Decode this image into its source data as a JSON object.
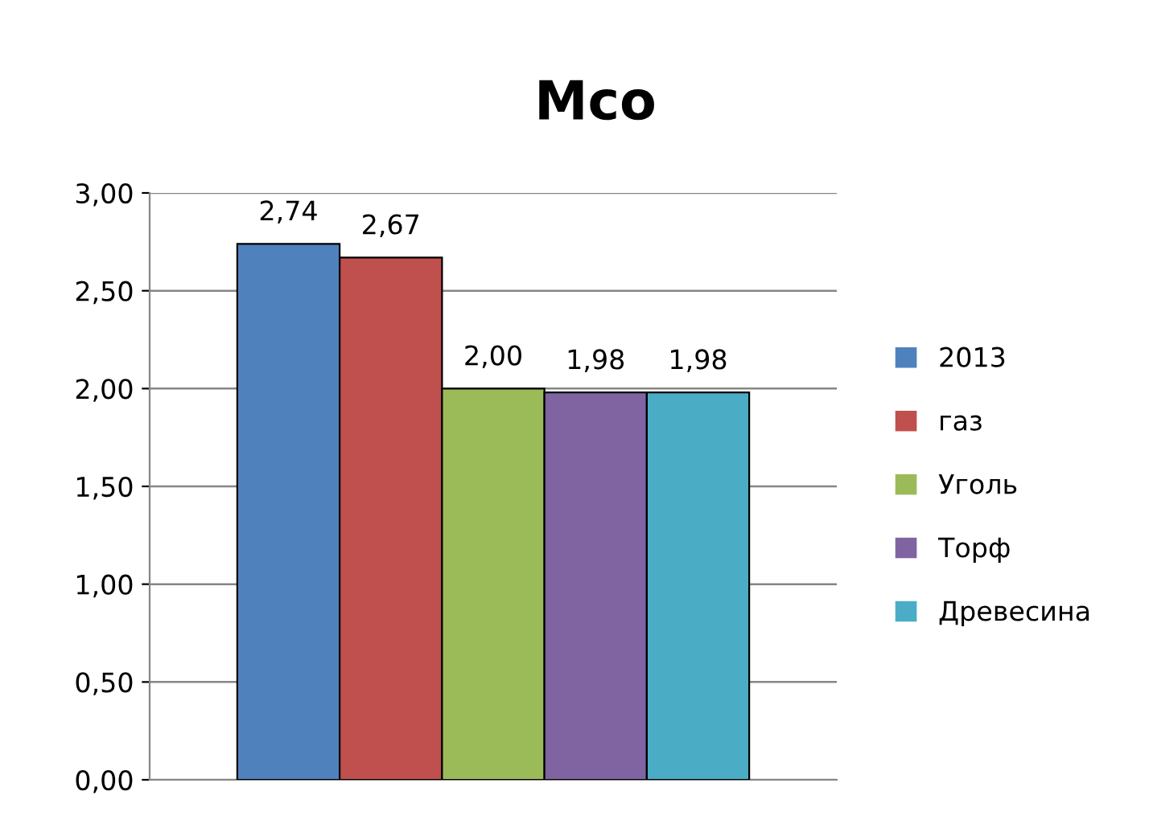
{
  "chart_data": {
    "type": "bar",
    "title": "Mco",
    "categories": [
      null
    ],
    "series": [
      {
        "name": "2013",
        "color": "#4f81bd",
        "values": [
          2.74
        ],
        "value_labels": [
          "2,74"
        ]
      },
      {
        "name": "газ",
        "color": "#c0504d",
        "values": [
          2.67
        ],
        "value_labels": [
          "2,67"
        ]
      },
      {
        "name": "Уголь",
        "color": "#9bbb59",
        "values": [
          2.0
        ],
        "value_labels": [
          "2,00"
        ]
      },
      {
        "name": "Торф",
        "color": "#8064a2",
        "values": [
          1.98
        ],
        "value_labels": [
          "1,98"
        ]
      },
      {
        "name": "Древесина",
        "color": "#4bacc6",
        "values": [
          1.98
        ],
        "value_labels": [
          "1,98"
        ]
      }
    ],
    "ylim": [
      0,
      3
    ],
    "yticks": [
      {
        "value": 0,
        "label": "0,00"
      },
      {
        "value": 0.5,
        "label": "0,50"
      },
      {
        "value": 1,
        "label": "1,00"
      },
      {
        "value": 1.5,
        "label": "1,50"
      },
      {
        "value": 2,
        "label": "2,00"
      },
      {
        "value": 2.5,
        "label": "2,50"
      },
      {
        "value": 3,
        "label": "3,00"
      }
    ],
    "grid": "y",
    "legend": "right"
  }
}
